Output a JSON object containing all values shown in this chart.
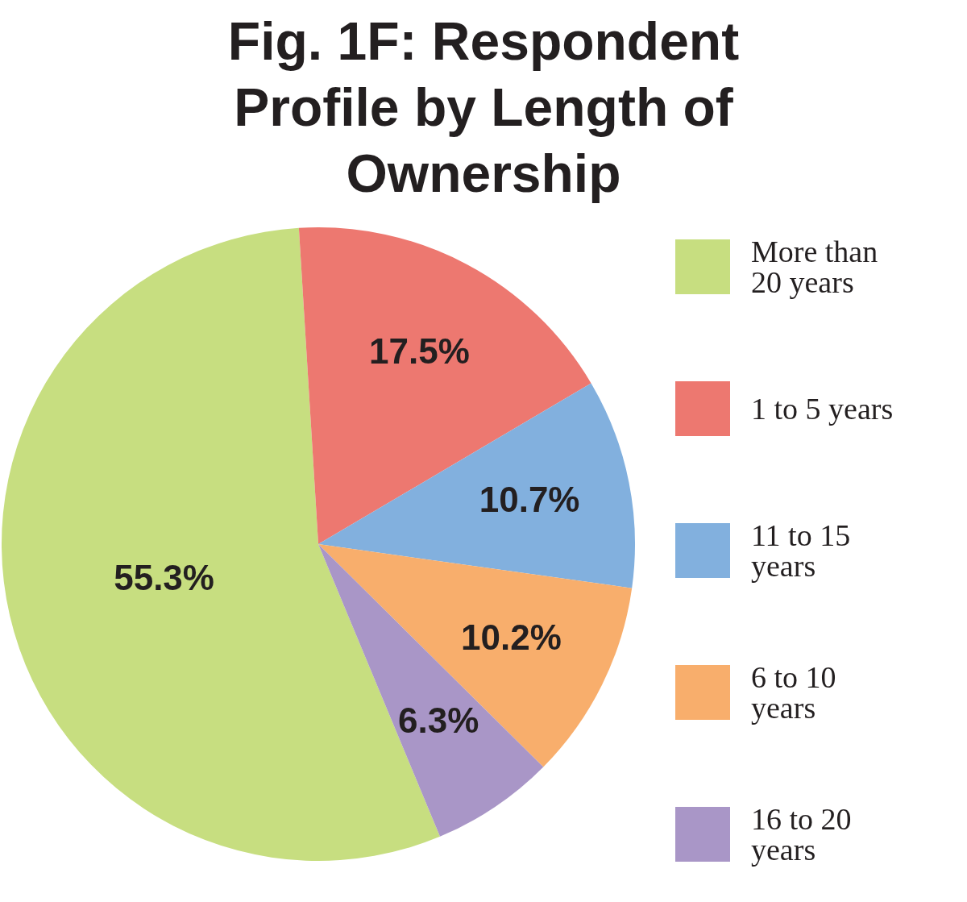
{
  "chart_data": {
    "type": "pie",
    "title": "Fig. 1F: Respondent Profile by Length of Ownership",
    "categories": [
      "More than 20 years",
      "1 to 5 years",
      "11 to 15 years",
      "6 to 10 years",
      "16 to 20 years"
    ],
    "values": [
      55.3,
      17.5,
      10.7,
      10.2,
      6.3
    ],
    "colors": [
      "#c7de80",
      "#ed7870",
      "#82b0de",
      "#f8ae6c",
      "#a996c7"
    ],
    "value_labels": [
      "55.3%",
      "17.5%",
      "10.7%",
      "10.2%",
      "6.3%"
    ],
    "legend": "right"
  }
}
